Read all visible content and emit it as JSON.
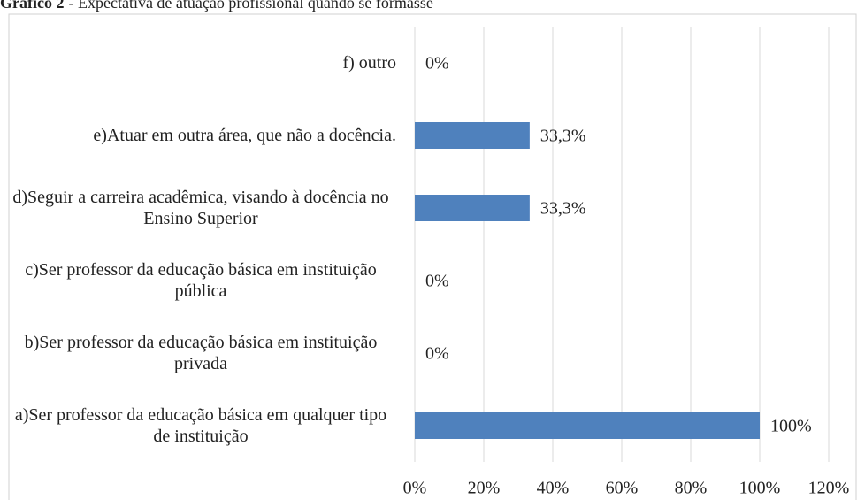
{
  "chart_data": {
    "type": "bar",
    "orientation": "horizontal",
    "title_label": "Gráfico 2",
    "title": "- Expectativa de atuação profissional quando se formasse",
    "categories": [
      "f) outro",
      "e)Atuar em outra área, que não a docência.",
      "d)Seguir a carreira acadêmica, visando à docência no Ensino Superior",
      "c)Ser professor da educação básica em instituição pública",
      "b)Ser professor da educação básica em instituição privada",
      "a)Ser professor da educação básica em qualquer tipo de instituição"
    ],
    "values": [
      0,
      33.3,
      33.3,
      0,
      0,
      100
    ],
    "value_labels": [
      "0%",
      "33,3%",
      "33,3%",
      "0%",
      "0%",
      "100%"
    ],
    "color": "#4f81bd",
    "xlim": [
      0,
      120
    ],
    "xticks": [
      {
        "value": 0,
        "label": "0%"
      },
      {
        "value": 20,
        "label": "20%"
      },
      {
        "value": 40,
        "label": "40%"
      },
      {
        "value": 60,
        "label": "60%"
      },
      {
        "value": 80,
        "label": "80%"
      },
      {
        "value": 100,
        "label": "100%"
      },
      {
        "value": 120,
        "label": "120%"
      }
    ],
    "grid": true
  }
}
